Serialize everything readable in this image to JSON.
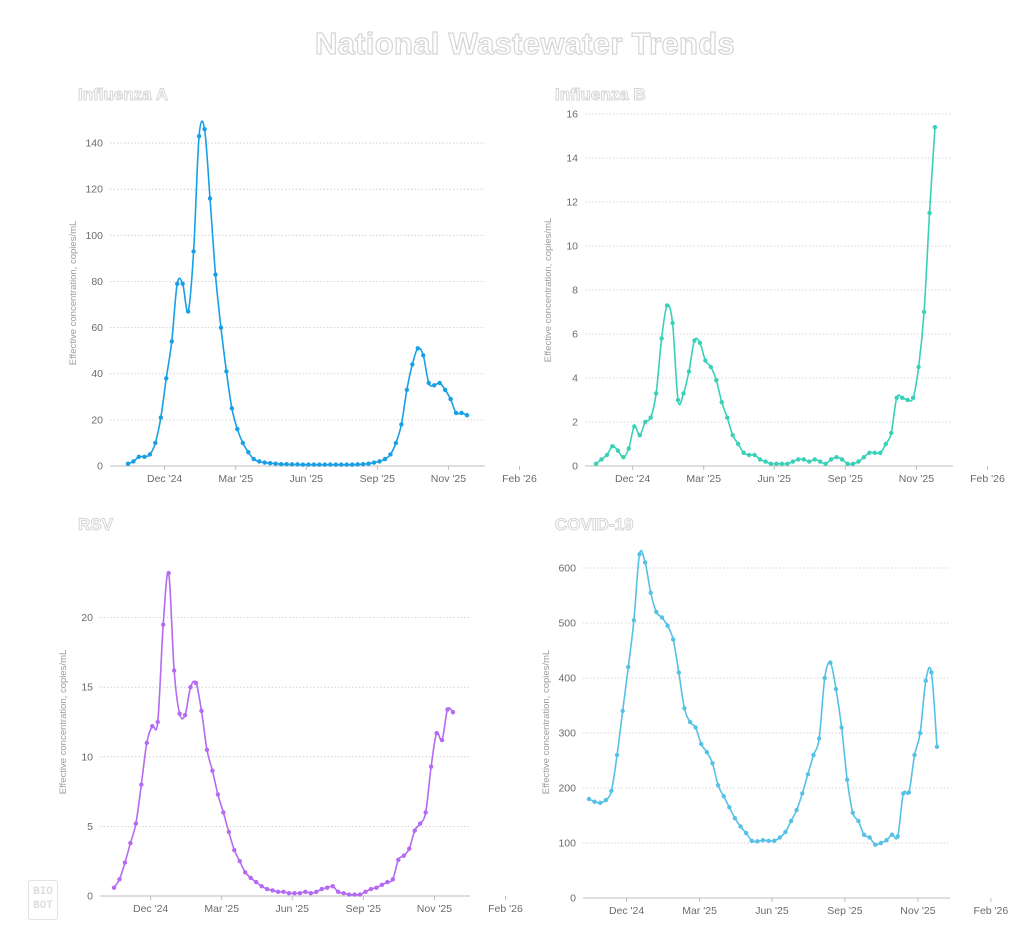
{
  "page": {
    "title": "National Wastewater Trends",
    "logo_text": "BIO\nBOT"
  },
  "colors": {
    "influenza_a": "#17a0e6",
    "influenza_b": "#38d1b8",
    "rsv": "#b46af2",
    "covid": "#56c1e6",
    "gridline": "#c8c8c8",
    "axis": "#bdbdbd"
  },
  "chart_data": [
    {
      "id": "influenza_a",
      "type": "line",
      "title": "Influenza A",
      "ylabel": "Effective concentration, copies/mL",
      "ylim": [
        0,
        150
      ],
      "yticks": [
        0,
        20,
        40,
        60,
        80,
        100,
        120,
        140
      ],
      "xlim": [
        0,
        62
      ],
      "xticks": [
        {
          "pos": 6.7,
          "label": "Dec '24"
        },
        {
          "pos": 19.7,
          "label": "Mar '25"
        },
        {
          "pos": 32.6,
          "label": "Jun '25"
        },
        {
          "pos": 45.6,
          "label": "Sep '25"
        },
        {
          "pos": 58.6,
          "label": "Nov '25"
        },
        {
          "pos": 71.6,
          "label": "Feb '26"
        }
      ],
      "x": [
        0,
        1,
        2,
        3,
        4,
        5,
        6,
        7,
        8,
        9,
        10,
        11,
        12,
        13,
        14,
        15,
        16,
        17,
        18,
        19,
        20,
        21,
        22,
        23,
        24,
        25,
        26,
        27,
        28,
        29,
        30,
        31,
        32,
        33,
        34,
        35,
        36,
        37,
        38,
        39,
        40,
        41,
        42,
        43,
        44,
        45,
        46,
        47,
        48,
        49,
        50,
        51,
        52,
        53,
        54,
        55,
        56,
        57,
        58,
        59,
        60,
        61,
        62
      ],
      "y": [
        1,
        2,
        4,
        4,
        5,
        10,
        21,
        38,
        54,
        79,
        79,
        67,
        93,
        143,
        146,
        116,
        83,
        60,
        41,
        25,
        16,
        10,
        6,
        3,
        2,
        1.5,
        1.2,
        1,
        0.8,
        0.8,
        0.7,
        0.7,
        0.6,
        0.6,
        0.6,
        0.6,
        0.6,
        0.6,
        0.6,
        0.6,
        0.6,
        0.6,
        0.7,
        0.8,
        1,
        1.5,
        2,
        3,
        5,
        10,
        18,
        33,
        44,
        51,
        48,
        36,
        35,
        36,
        33,
        29,
        23,
        23,
        22
      ]
    },
    {
      "id": "influenza_b",
      "type": "line",
      "title": "Influenza B",
      "ylabel": "Effective concentration, copies/mL",
      "ylim": [
        0,
        16
      ],
      "yticks": [
        0,
        2,
        4,
        6,
        8,
        10,
        12,
        14,
        16
      ],
      "xlim": [
        0,
        62
      ],
      "xticks": [
        {
          "pos": 6.7,
          "label": "Dec '24"
        },
        {
          "pos": 19.7,
          "label": "Mar '25"
        },
        {
          "pos": 32.6,
          "label": "Jun '25"
        },
        {
          "pos": 45.6,
          "label": "Sep '25"
        },
        {
          "pos": 58.6,
          "label": "Nov '25"
        },
        {
          "pos": 71.6,
          "label": "Feb '26"
        }
      ],
      "x": [
        0,
        1,
        2,
        3,
        4,
        5,
        6,
        7,
        8,
        9,
        10,
        11,
        12,
        13,
        14,
        15,
        16,
        17,
        18,
        19,
        20,
        21,
        22,
        23,
        24,
        25,
        26,
        27,
        28,
        29,
        30,
        31,
        32,
        33,
        34,
        35,
        36,
        37,
        38,
        39,
        40,
        41,
        42,
        43,
        44,
        45,
        46,
        47,
        48,
        49,
        50,
        51,
        52,
        53,
        54,
        55,
        56,
        57,
        58,
        59,
        60,
        61,
        62
      ],
      "y": [
        0.1,
        0.3,
        0.5,
        0.9,
        0.7,
        0.4,
        0.8,
        1.8,
        1.4,
        2.0,
        2.2,
        3.3,
        5.8,
        7.3,
        6.5,
        3.0,
        3.3,
        4.3,
        5.7,
        5.6,
        4.8,
        4.5,
        3.9,
        2.9,
        2.2,
        1.4,
        1.0,
        0.6,
        0.5,
        0.5,
        0.3,
        0.2,
        0.1,
        0.1,
        0.1,
        0.1,
        0.2,
        0.3,
        0.3,
        0.2,
        0.3,
        0.2,
        0.1,
        0.3,
        0.4,
        0.3,
        0.1,
        0.1,
        0.2,
        0.4,
        0.6,
        0.6,
        0.6,
        1.0,
        1.5,
        3.1,
        3.1,
        3.0,
        3.1,
        4.5,
        7.0,
        11.5,
        15.4
      ]
    },
    {
      "id": "rsv",
      "type": "line",
      "title": "RSV",
      "ylabel": "Effective concentration, copies/mL",
      "ylim": [
        0,
        25
      ],
      "yticks": [
        0,
        5,
        10,
        15,
        20
      ],
      "xlim": [
        0,
        62
      ],
      "xticks": [
        {
          "pos": 6.7,
          "label": "Dec '24"
        },
        {
          "pos": 19.7,
          "label": "Mar '25"
        },
        {
          "pos": 32.6,
          "label": "Jun '25"
        },
        {
          "pos": 45.6,
          "label": "Sep '25"
        },
        {
          "pos": 58.6,
          "label": "Nov '25"
        },
        {
          "pos": 71.6,
          "label": "Feb '26"
        }
      ],
      "x": [
        0,
        1,
        2,
        3,
        4,
        5,
        6,
        7,
        8,
        9,
        10,
        11,
        12,
        13,
        14,
        15,
        16,
        17,
        18,
        19,
        20,
        21,
        22,
        23,
        24,
        25,
        26,
        27,
        28,
        29,
        30,
        31,
        32,
        33,
        34,
        35,
        36,
        37,
        38,
        39,
        40,
        41,
        42,
        43,
        44,
        45,
        46,
        47,
        48,
        49,
        50,
        51,
        52,
        53,
        54,
        55,
        56,
        57,
        58,
        59,
        60,
        61,
        62
      ],
      "y": [
        0.6,
        1.2,
        2.4,
        3.8,
        5.2,
        8.0,
        11.0,
        12.2,
        12.5,
        19.5,
        23.2,
        16.2,
        13.1,
        13.0,
        15.0,
        15.3,
        13.3,
        10.5,
        9.0,
        7.3,
        6.0,
        4.6,
        3.3,
        2.5,
        1.7,
        1.3,
        1.0,
        0.7,
        0.5,
        0.4,
        0.3,
        0.3,
        0.2,
        0.2,
        0.2,
        0.3,
        0.2,
        0.3,
        0.5,
        0.6,
        0.7,
        0.3,
        0.2,
        0.1,
        0.1,
        0.1,
        0.3,
        0.5,
        0.6,
        0.8,
        1.0,
        1.2,
        2.6,
        2.9,
        3.4,
        4.7,
        5.2,
        6.0,
        9.3,
        11.7,
        11.2,
        13.4,
        13.2
      ]
    },
    {
      "id": "covid",
      "type": "line",
      "title": "COVID-19",
      "ylabel": "Effective concentration, copies/mL",
      "ylim": [
        0,
        640
      ],
      "yticks": [
        0,
        100,
        200,
        300,
        400,
        500,
        600
      ],
      "xlim": [
        0,
        62
      ],
      "xticks": [
        {
          "pos": 6.7,
          "label": "Dec '24"
        },
        {
          "pos": 19.7,
          "label": "Mar '25"
        },
        {
          "pos": 32.6,
          "label": "Jun '25"
        },
        {
          "pos": 45.6,
          "label": "Sep '25"
        },
        {
          "pos": 58.6,
          "label": "Nov '25"
        },
        {
          "pos": 71.6,
          "label": "Feb '26"
        }
      ],
      "x": [
        0,
        1,
        2,
        3,
        4,
        5,
        6,
        7,
        8,
        9,
        10,
        11,
        12,
        13,
        14,
        15,
        16,
        17,
        18,
        19,
        20,
        21,
        22,
        23,
        24,
        25,
        26,
        27,
        28,
        29,
        30,
        31,
        32,
        33,
        34,
        35,
        36,
        37,
        38,
        39,
        40,
        41,
        42,
        43,
        44,
        45,
        46,
        47,
        48,
        49,
        50,
        51,
        52,
        53,
        54,
        55,
        56,
        57,
        58,
        59,
        60,
        61,
        62
      ],
      "y": [
        180,
        175,
        173,
        178,
        195,
        260,
        340,
        420,
        505,
        625,
        610,
        555,
        520,
        510,
        495,
        470,
        410,
        345,
        320,
        310,
        280,
        265,
        245,
        205,
        185,
        165,
        145,
        130,
        118,
        104,
        103,
        105,
        104,
        104,
        110,
        120,
        140,
        160,
        190,
        225,
        260,
        290,
        400,
        428,
        380,
        310,
        215,
        155,
        140,
        115,
        110,
        97,
        100,
        105,
        115,
        112,
        190,
        192,
        260,
        300,
        395,
        410,
        275
      ]
    }
  ]
}
